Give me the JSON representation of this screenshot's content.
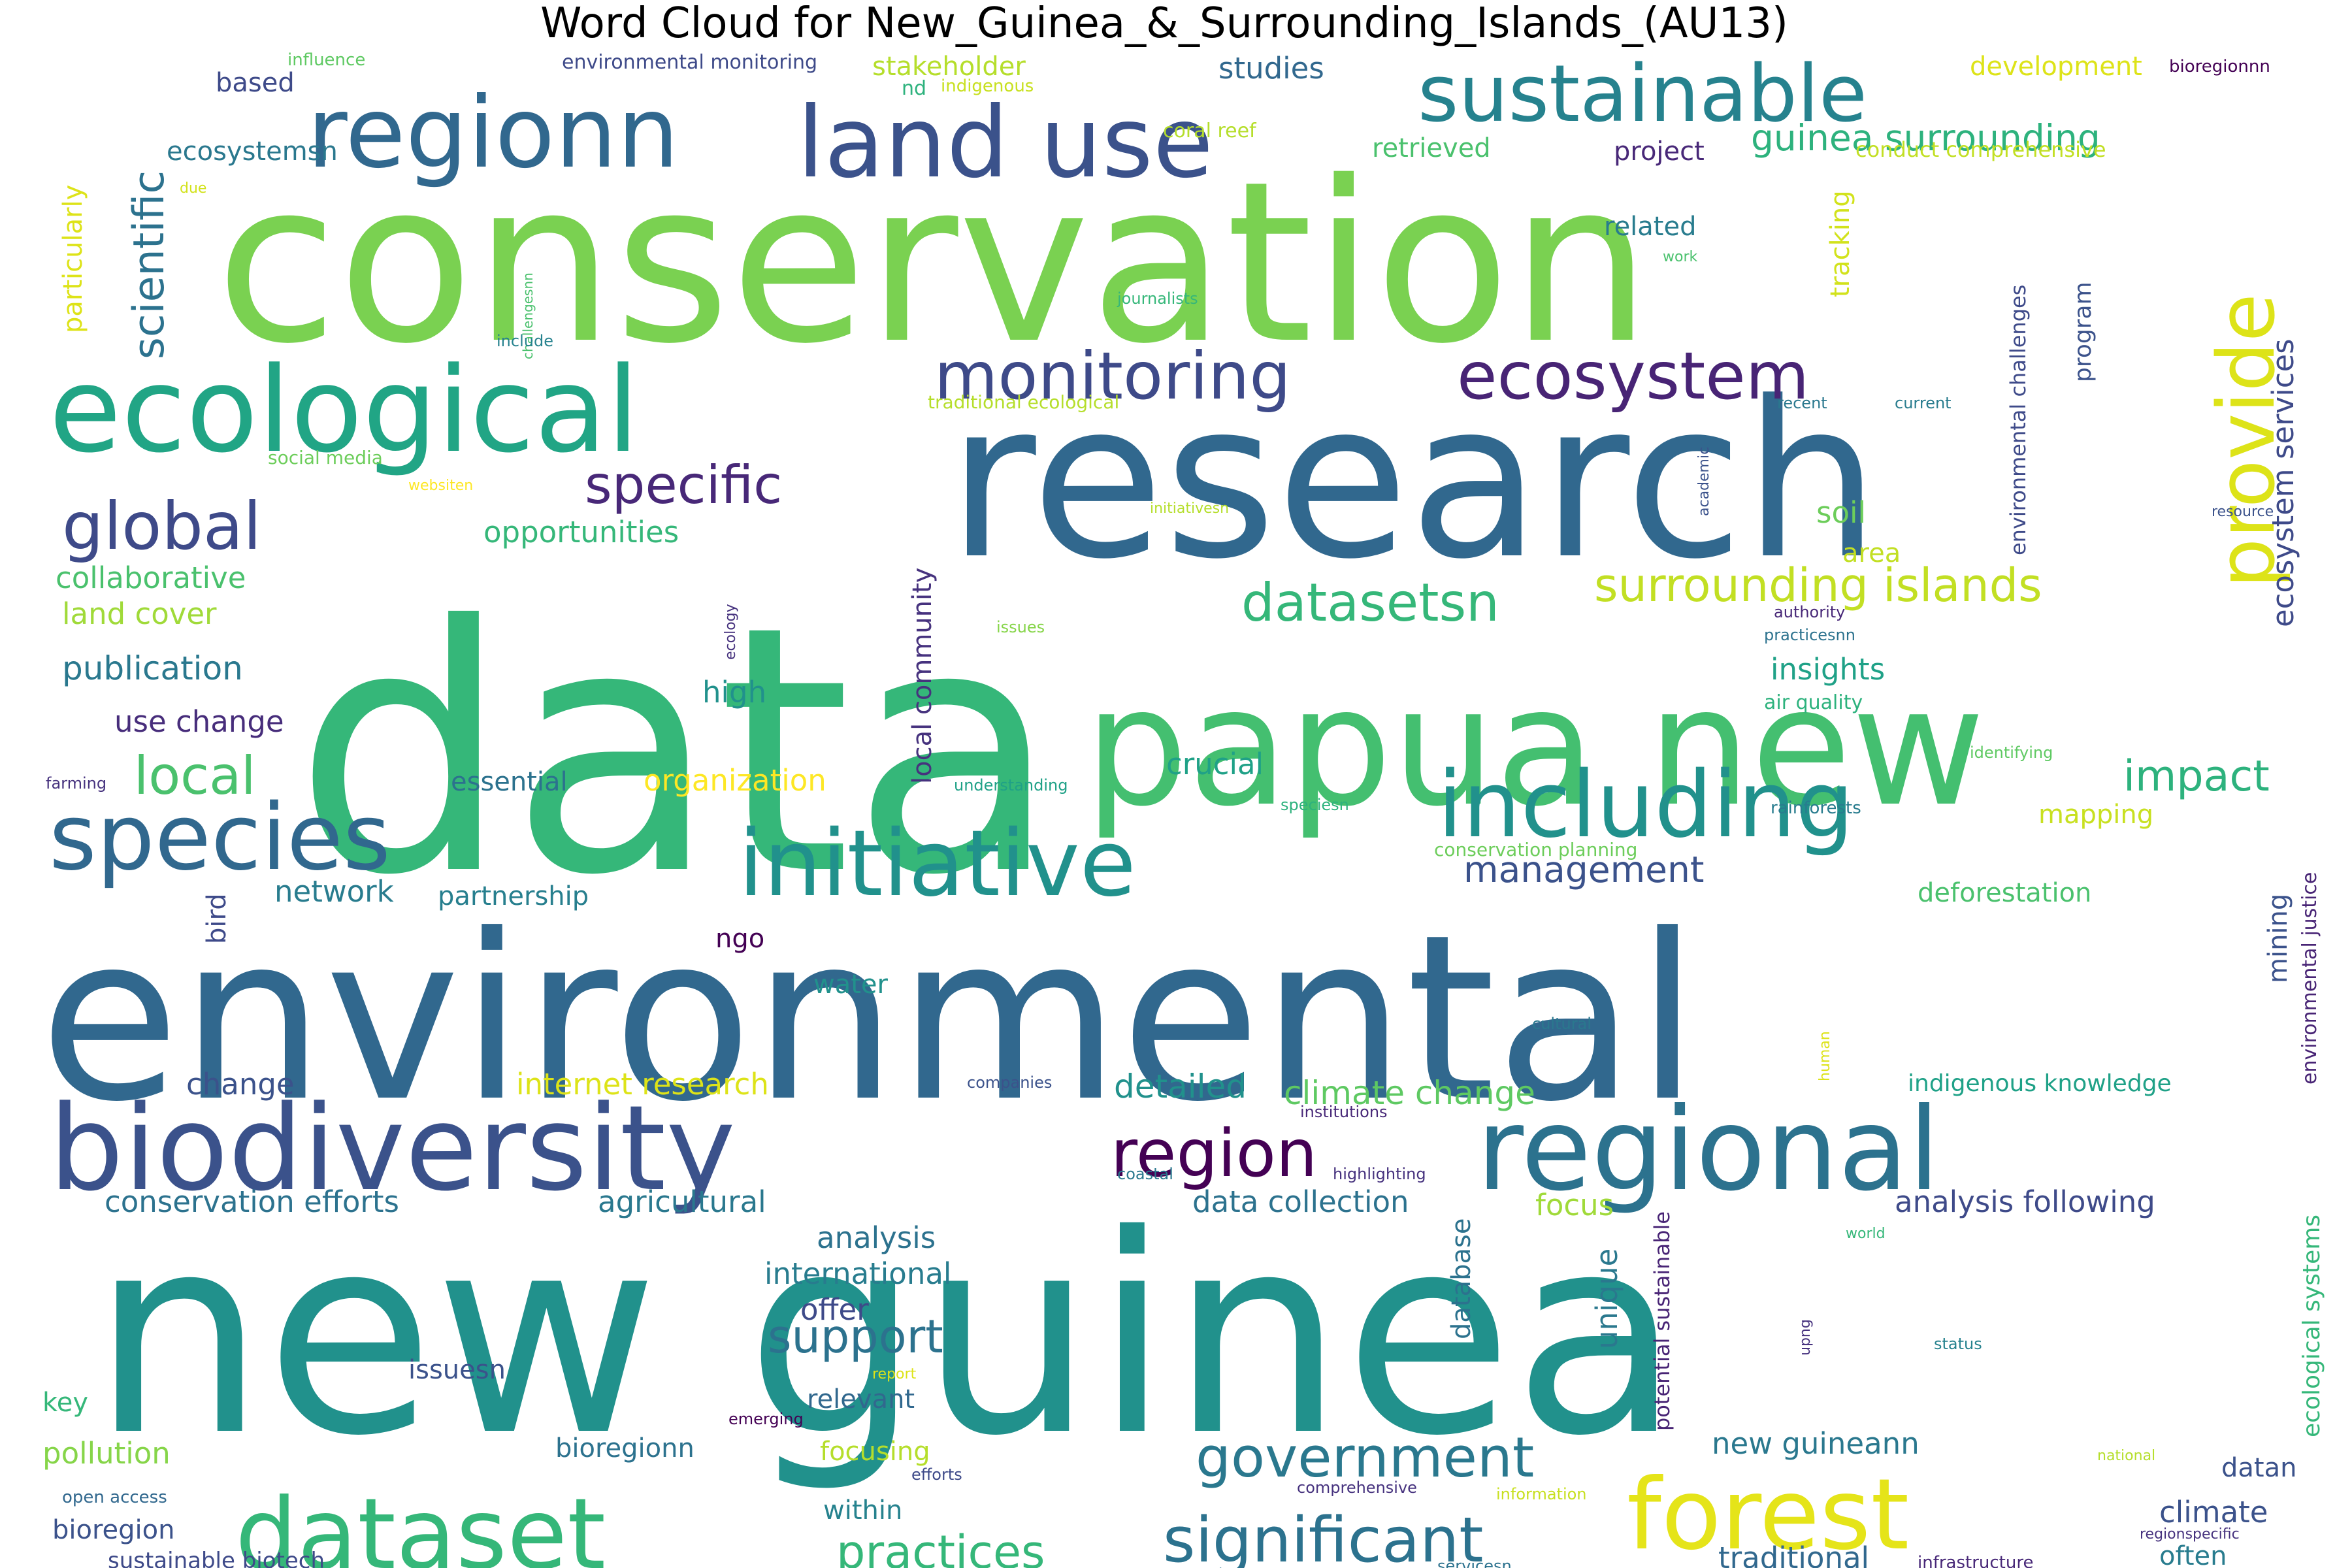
{
  "title": "Word Cloud for New_Guinea_&_Surrounding_Islands_(AU13)",
  "palette": [
    "#440154",
    "#46327e",
    "#365c8d",
    "#277f8e",
    "#1fa187",
    "#4ac16d",
    "#a0da39",
    "#fde725"
  ],
  "words": [
    {
      "text": "conservation",
      "size": 340,
      "color": "#7ad151"
    },
    {
      "text": "research",
      "size": 330,
      "color": "#31688e"
    },
    {
      "text": "data",
      "size": 520,
      "color": "#35b779"
    },
    {
      "text": "environmental",
      "size": 350,
      "color": "#31688e"
    },
    {
      "text": "new guinea",
      "size": 420,
      "color": "#21918c"
    },
    {
      "text": "papua new",
      "size": 250,
      "color": "#44bf70"
    },
    {
      "text": "ecological",
      "size": 180,
      "color": "#21a585"
    },
    {
      "text": "biodiversity",
      "size": 180,
      "color": "#3b528b"
    },
    {
      "text": "regional",
      "size": 175,
      "color": "#2c728e"
    },
    {
      "text": "regionn",
      "size": 150,
      "color": "#31688e"
    },
    {
      "text": "land use",
      "size": 150,
      "color": "#3b528b"
    },
    {
      "text": "species",
      "size": 140,
      "color": "#31688e"
    },
    {
      "text": "initiative",
      "size": 140,
      "color": "#21918c"
    },
    {
      "text": "including",
      "size": 140,
      "color": "#21918c"
    },
    {
      "text": "dataset",
      "size": 150,
      "color": "#35b779"
    },
    {
      "text": "forest",
      "size": 150,
      "color": "#e5e419"
    },
    {
      "text": "sustainable",
      "size": 120,
      "color": "#26828e"
    },
    {
      "text": "provide",
      "size": 120,
      "color": "#dde318"
    },
    {
      "text": "monitoring",
      "size": 100,
      "color": "#3e4a89"
    },
    {
      "text": "ecosystem",
      "size": 100,
      "color": "#482475"
    },
    {
      "text": "global",
      "size": 100,
      "color": "#3e4a89"
    },
    {
      "text": "region",
      "size": 100,
      "color": "#440154"
    },
    {
      "text": "significant",
      "size": 95,
      "color": "#2c728e"
    },
    {
      "text": "government",
      "size": 85,
      "color": "#2a788e"
    },
    {
      "text": "local",
      "size": 80,
      "color": "#4ac16d"
    },
    {
      "text": "specific",
      "size": 80,
      "color": "#482878"
    },
    {
      "text": "datasetsn",
      "size": 80,
      "color": "#35b779"
    },
    {
      "text": "surrounding islands",
      "size": 70,
      "color": "#c2df23"
    },
    {
      "text": "practices",
      "size": 70,
      "color": "#35b779"
    },
    {
      "text": "support",
      "size": 70,
      "color": "#2c728e"
    },
    {
      "text": "impact",
      "size": 65,
      "color": "#2db27d"
    },
    {
      "text": "scientific",
      "size": 65,
      "color": "#2c728e"
    },
    {
      "text": "guinea surrounding",
      "size": 55,
      "color": "#2db27d"
    },
    {
      "text": "management",
      "size": 55,
      "color": "#3b528b"
    },
    {
      "text": "ecosystem services",
      "size": 45,
      "color": "#3e4a89"
    },
    {
      "text": "climate change",
      "size": 50,
      "color": "#5ec962"
    },
    {
      "text": "analysis following",
      "size": 45,
      "color": "#3e4a89"
    },
    {
      "text": "detailed",
      "size": 50,
      "color": "#21918c"
    },
    {
      "text": "stakeholder",
      "size": 40,
      "color": "#b5de2b"
    },
    {
      "text": "studies",
      "size": 45,
      "color": "#31688e"
    },
    {
      "text": "development",
      "size": 40,
      "color": "#dde318"
    },
    {
      "text": "retrieved",
      "size": 40,
      "color": "#4ac16d"
    },
    {
      "text": "project",
      "size": 40,
      "color": "#482878"
    },
    {
      "text": "conduct comprehensive",
      "size": 32,
      "color": "#c2df23"
    },
    {
      "text": "ecosystemsn",
      "size": 40,
      "color": "#2a788e"
    },
    {
      "text": "related",
      "size": 40,
      "color": "#287c8e"
    },
    {
      "text": "tracking",
      "size": 40,
      "color": "#d2e21b"
    },
    {
      "text": "environmental challenges",
      "size": 32,
      "color": "#3e4a89"
    },
    {
      "text": "program",
      "size": 36,
      "color": "#3b528b"
    },
    {
      "text": "particularly",
      "size": 40,
      "color": "#dde318"
    },
    {
      "text": "based",
      "size": 40,
      "color": "#3e4a89"
    },
    {
      "text": "influence",
      "size": 26,
      "color": "#5ec962"
    },
    {
      "text": "environmental monitoring",
      "size": 30,
      "color": "#3e4a89"
    },
    {
      "text": "nd",
      "size": 30,
      "color": "#2db27d"
    },
    {
      "text": "indigenous",
      "size": 26,
      "color": "#c8e020"
    },
    {
      "text": "coral reef",
      "size": 30,
      "color": "#b5de2b"
    },
    {
      "text": "bioregionnn",
      "size": 26,
      "color": "#440154"
    },
    {
      "text": "due",
      "size": 22,
      "color": "#d2e21b"
    },
    {
      "text": "challengesnn",
      "size": 20,
      "color": "#4ac16d"
    },
    {
      "text": "work",
      "size": 22,
      "color": "#4ac16d"
    },
    {
      "text": "journalists",
      "size": 24,
      "color": "#35b779"
    },
    {
      "text": "include",
      "size": 24,
      "color": "#26828e"
    },
    {
      "text": "traditional ecological",
      "size": 28,
      "color": "#b5de2b"
    },
    {
      "text": "recent",
      "size": 24,
      "color": "#2a788e"
    },
    {
      "text": "current",
      "size": 24,
      "color": "#287c8e"
    },
    {
      "text": "social media",
      "size": 28,
      "color": "#6ccd5a"
    },
    {
      "text": "websiten",
      "size": 22,
      "color": "#fde725"
    },
    {
      "text": "initiativesn",
      "size": 22,
      "color": "#b5de2b"
    },
    {
      "text": "academic",
      "size": 22,
      "color": "#3b528b"
    },
    {
      "text": "resource",
      "size": 22,
      "color": "#3b528b"
    },
    {
      "text": "opportunities",
      "size": 45,
      "color": "#35b779"
    },
    {
      "text": "soil",
      "size": 45,
      "color": "#6ccd5a"
    },
    {
      "text": "area",
      "size": 40,
      "color": "#c2df23"
    },
    {
      "text": "collaborative",
      "size": 45,
      "color": "#4ac16d"
    },
    {
      "text": "land cover",
      "size": 45,
      "color": "#a0da39"
    },
    {
      "text": "publication",
      "size": 50,
      "color": "#2a788e"
    },
    {
      "text": "use change",
      "size": 45,
      "color": "#472d7b"
    },
    {
      "text": "ecology",
      "size": 22,
      "color": "#46327e"
    },
    {
      "text": "issues",
      "size": 24,
      "color": "#86d549"
    },
    {
      "text": "authority",
      "size": 24,
      "color": "#482878"
    },
    {
      "text": "practicesnn",
      "size": 24,
      "color": "#2c728e"
    },
    {
      "text": "insights",
      "size": 45,
      "color": "#1fa187"
    },
    {
      "text": "high",
      "size": 45,
      "color": "#21918c"
    },
    {
      "text": "local community",
      "size": 40,
      "color": "#46327e"
    },
    {
      "text": "air quality",
      "size": 30,
      "color": "#2db27d"
    },
    {
      "text": "crucial",
      "size": 45,
      "color": "#1fa187"
    },
    {
      "text": "identifying",
      "size": 24,
      "color": "#5ec962"
    },
    {
      "text": "mapping",
      "size": 40,
      "color": "#c8e020"
    },
    {
      "text": "environmental justice",
      "size": 30,
      "color": "#482475"
    },
    {
      "text": "farming",
      "size": 24,
      "color": "#46327e"
    },
    {
      "text": "essential",
      "size": 40,
      "color": "#2c728e"
    },
    {
      "text": "organization",
      "size": 45,
      "color": "#fde725"
    },
    {
      "text": "understanding",
      "size": 24,
      "color": "#1fa187"
    },
    {
      "text": "speciesn",
      "size": 24,
      "color": "#2db27d"
    },
    {
      "text": "rainforests",
      "size": 26,
      "color": "#287c8e"
    },
    {
      "text": "conservation planning",
      "size": 28,
      "color": "#6ccd5a"
    },
    {
      "text": "deforestation",
      "size": 40,
      "color": "#4ac16d"
    },
    {
      "text": "bird",
      "size": 40,
      "color": "#3e4a89"
    },
    {
      "text": "network",
      "size": 45,
      "color": "#287c8e"
    },
    {
      "text": "partnership",
      "size": 40,
      "color": "#277f8e"
    },
    {
      "text": "mining",
      "size": 40,
      "color": "#3b528b"
    },
    {
      "text": "ngo",
      "size": 40,
      "color": "#440154"
    },
    {
      "text": "water",
      "size": 40,
      "color": "#21918c"
    },
    {
      "text": "cultural",
      "size": 24,
      "color": "#2a788e"
    },
    {
      "text": "human",
      "size": 22,
      "color": "#dde318"
    },
    {
      "text": "change",
      "size": 45,
      "color": "#3b528b"
    },
    {
      "text": "internet research",
      "size": 45,
      "color": "#dde318"
    },
    {
      "text": "companies",
      "size": 24,
      "color": "#3b528b"
    },
    {
      "text": "institutions",
      "size": 24,
      "color": "#482878"
    },
    {
      "text": "indigenous knowledge",
      "size": 36,
      "color": "#1fa187"
    },
    {
      "text": "coastal",
      "size": 24,
      "color": "#2a788e"
    },
    {
      "text": "highlighting",
      "size": 24,
      "color": "#46327e"
    },
    {
      "text": "conservation efforts",
      "size": 45,
      "color": "#2c728e"
    },
    {
      "text": "agricultural",
      "size": 45,
      "color": "#2a788e"
    },
    {
      "text": "data collection",
      "size": 45,
      "color": "#2c728e"
    },
    {
      "text": "focus",
      "size": 45,
      "color": "#a0da39"
    },
    {
      "text": "potential sustainable",
      "size": 32,
      "color": "#482475"
    },
    {
      "text": "ecological systems",
      "size": 36,
      "color": "#35b779"
    },
    {
      "text": "world",
      "size": 22,
      "color": "#35b779"
    },
    {
      "text": "analysis",
      "size": 45,
      "color": "#2c728e"
    },
    {
      "text": "international",
      "size": 45,
      "color": "#287c8e"
    },
    {
      "text": "offer",
      "size": 45,
      "color": "#3e4a89"
    },
    {
      "text": "database",
      "size": 40,
      "color": "#2c728e"
    },
    {
      "text": "unique",
      "size": 45,
      "color": "#2a788e"
    },
    {
      "text": "upng",
      "size": 22,
      "color": "#46327e"
    },
    {
      "text": "status",
      "size": 24,
      "color": "#26828e"
    },
    {
      "text": "issuesn",
      "size": 40,
      "color": "#3b528b"
    },
    {
      "text": "report",
      "size": 22,
      "color": "#dde318"
    },
    {
      "text": "key",
      "size": 40,
      "color": "#35b779"
    },
    {
      "text": "relevant",
      "size": 40,
      "color": "#31688e"
    },
    {
      "text": "emerging",
      "size": 24,
      "color": "#440154"
    },
    {
      "text": "pollution",
      "size": 45,
      "color": "#86d549"
    },
    {
      "text": "bioregionn",
      "size": 40,
      "color": "#2c728e"
    },
    {
      "text": "focusing",
      "size": 40,
      "color": "#b5de2b"
    },
    {
      "text": "new guineann",
      "size": 45,
      "color": "#2a788e"
    },
    {
      "text": "national",
      "size": 22,
      "color": "#b5de2b"
    },
    {
      "text": "datan",
      "size": 40,
      "color": "#3b528b"
    },
    {
      "text": "efforts",
      "size": 24,
      "color": "#3e4a89"
    },
    {
      "text": "comprehensive",
      "size": 24,
      "color": "#46327e"
    },
    {
      "text": "information",
      "size": 24,
      "color": "#c8e020"
    },
    {
      "text": "open access",
      "size": 26,
      "color": "#31688e"
    },
    {
      "text": "within",
      "size": 40,
      "color": "#26828e"
    },
    {
      "text": "climate",
      "size": 45,
      "color": "#3b528b"
    },
    {
      "text": "regionspecific",
      "size": 22,
      "color": "#46327e"
    },
    {
      "text": "bioregion",
      "size": 40,
      "color": "#3b528b"
    },
    {
      "text": "often",
      "size": 40,
      "color": "#287c8e"
    },
    {
      "text": "sustainable biotech",
      "size": 34,
      "color": "#3e4a89"
    },
    {
      "text": "servicesn",
      "size": 24,
      "color": "#2c728e"
    },
    {
      "text": "traditional",
      "size": 45,
      "color": "#31688e"
    },
    {
      "text": "infrastructure",
      "size": 26,
      "color": "#482878"
    }
  ]
}
